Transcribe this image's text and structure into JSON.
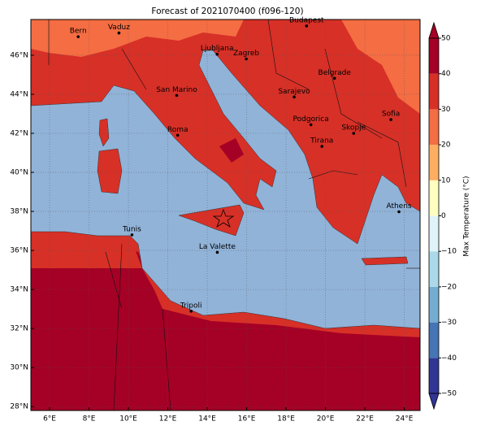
{
  "chart_data": {
    "type": "map",
    "title": "Forecast of 2021070400 (f096-120)",
    "xlim": [
      5.05,
      24.8
    ],
    "ylim": [
      27.8,
      47.83
    ],
    "xticks": [
      {
        "value": 6,
        "label": "6°E"
      },
      {
        "value": 8,
        "label": "8°E"
      },
      {
        "value": 10,
        "label": "10°E"
      },
      {
        "value": 12,
        "label": "12°E"
      },
      {
        "value": 14,
        "label": "14°E"
      },
      {
        "value": 16,
        "label": "16°E"
      },
      {
        "value": 18,
        "label": "18°E"
      },
      {
        "value": 20,
        "label": "20°E"
      },
      {
        "value": 22,
        "label": "22°E"
      },
      {
        "value": 24,
        "label": "24°E"
      }
    ],
    "yticks": [
      {
        "value": 28,
        "label": "28°N"
      },
      {
        "value": 30,
        "label": "30°N"
      },
      {
        "value": 32,
        "label": "32°N"
      },
      {
        "value": 34,
        "label": "34°N"
      },
      {
        "value": 36,
        "label": "36°N"
      },
      {
        "value": 38,
        "label": "38°N"
      },
      {
        "value": 40,
        "label": "40°N"
      },
      {
        "value": 42,
        "label": "42°N"
      },
      {
        "value": 44,
        "label": "44°N"
      },
      {
        "value": 46,
        "label": "46°N"
      }
    ],
    "grid": true,
    "cities": [
      {
        "name": "Bern",
        "lon": 7.45,
        "lat": 46.95
      },
      {
        "name": "Vaduz",
        "lon": 9.52,
        "lat": 47.14
      },
      {
        "name": "Budapest",
        "lon": 19.04,
        "lat": 47.5
      },
      {
        "name": "Ljubljana",
        "lon": 14.5,
        "lat": 46.05
      },
      {
        "name": "Zagreb",
        "lon": 15.98,
        "lat": 45.81
      },
      {
        "name": "Belgrade",
        "lon": 20.46,
        "lat": 44.82
      },
      {
        "name": "San Marino",
        "lon": 12.45,
        "lat": 43.94
      },
      {
        "name": "Sarajevo",
        "lon": 18.41,
        "lat": 43.86
      },
      {
        "name": "Sofia",
        "lon": 23.32,
        "lat": 42.7
      },
      {
        "name": "Podgorica",
        "lon": 19.26,
        "lat": 42.44
      },
      {
        "name": "Skopje",
        "lon": 21.43,
        "lat": 42.0
      },
      {
        "name": "Roma",
        "lon": 12.5,
        "lat": 41.9
      },
      {
        "name": "Tirana",
        "lon": 19.82,
        "lat": 41.33
      },
      {
        "name": "Athens",
        "lon": 23.73,
        "lat": 37.98
      },
      {
        "name": "Tunis",
        "lon": 10.18,
        "lat": 36.8
      },
      {
        "name": "La Valette",
        "lon": 14.51,
        "lat": 35.9
      },
      {
        "name": "Tripoli",
        "lon": 13.18,
        "lat": 32.89
      }
    ],
    "colorbar": {
      "label": "Max Temperature (°C)",
      "lim": [
        -50,
        50
      ],
      "ticks": [
        {
          "value": -50,
          "label": "−50"
        },
        {
          "value": -40,
          "label": "−40"
        },
        {
          "value": -30,
          "label": "−30"
        },
        {
          "value": -20,
          "label": "−20"
        },
        {
          "value": -10,
          "label": "−10"
        },
        0,
        10,
        20,
        30,
        40,
        50
      ],
      "colors": [
        "#313695",
        "#4575b4",
        "#74add1",
        "#abd9e9",
        "#e0f3f8",
        "#ffffbf",
        "#fdae61",
        "#f46d43",
        "#d73027",
        "#a50026"
      ]
    }
  }
}
